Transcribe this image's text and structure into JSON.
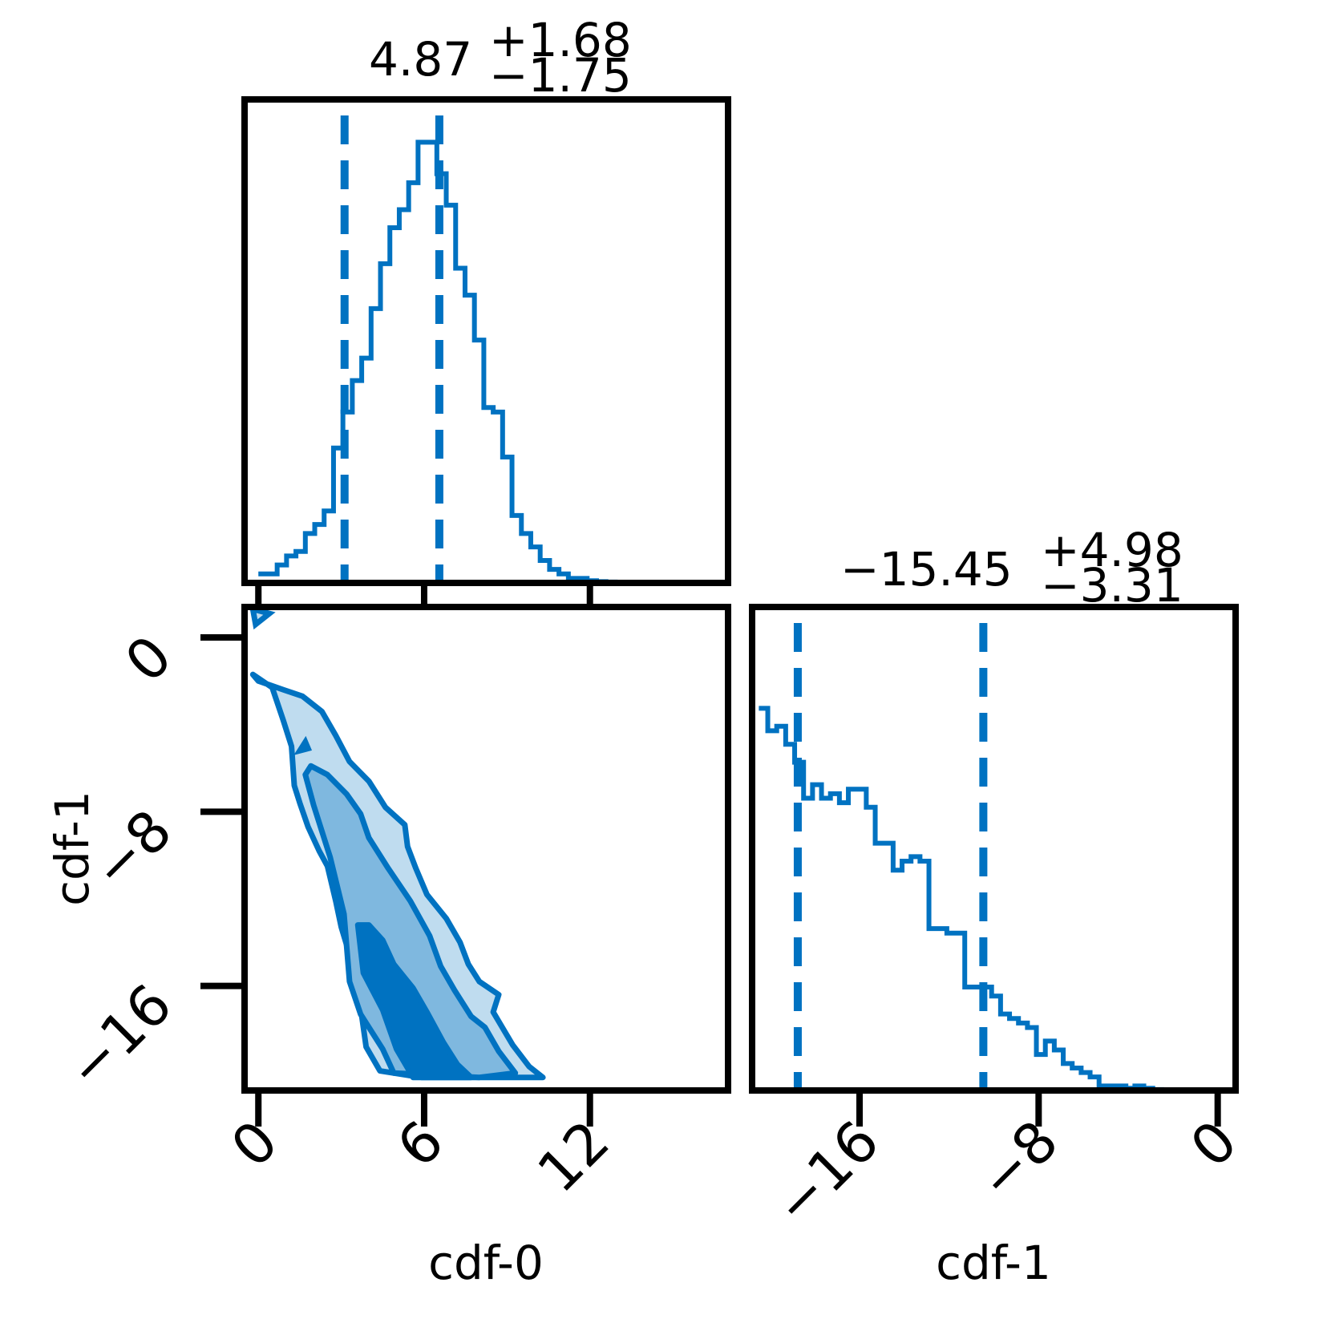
{
  "colors": {
    "accent": "#0072c1",
    "fill_inner": "#0072c1",
    "fill_mid": "#7fb8df",
    "fill_outer": "#bfdcef",
    "axes": "#000000",
    "background": "#ffffff"
  },
  "titles": {
    "cdf0": {
      "median": "4.87",
      "plus": "+1.68",
      "minus": "−1.75"
    },
    "cdf1": {
      "median": "−15.45",
      "plus": "+4.98",
      "minus": "−3.31"
    }
  },
  "labels": {
    "x0": "cdf-0",
    "x1": "cdf-1",
    "y1": "cdf-1"
  },
  "ticks": {
    "cdf0": [
      {
        "v": 0,
        "t": "0"
      },
      {
        "v": 6,
        "t": "6"
      },
      {
        "v": 12,
        "t": "12"
      }
    ],
    "cdf1": [
      {
        "v": -16,
        "t": "−16"
      },
      {
        "v": -8,
        "t": "−8"
      },
      {
        "v": 0,
        "t": "0"
      }
    ]
  },
  "chart_data": [
    {
      "type": "histogram",
      "name": "cdf-0",
      "xlim": [
        -0.5,
        17.0
      ],
      "ylim": [
        0,
        1.0
      ],
      "bin_start": 0.0,
      "bin_width": 0.34,
      "counts": [
        0.02,
        0.02,
        0.04,
        0.06,
        0.07,
        0.11,
        0.13,
        0.16,
        0.3,
        0.38,
        0.45,
        0.5,
        0.61,
        0.71,
        0.79,
        0.83,
        0.89,
        0.98,
        0.98,
        0.91,
        0.84,
        0.7,
        0.64,
        0.54,
        0.39,
        0.38,
        0.28,
        0.15,
        0.11,
        0.08,
        0.05,
        0.03,
        0.02,
        0.01,
        0.01,
        0.005,
        0.003,
        0.002,
        0.001,
        0.001
      ],
      "quantiles": [
        3.12,
        6.55
      ]
    },
    {
      "type": "histogram",
      "name": "cdf-1",
      "xlim": [
        -20.8,
        0.8
      ],
      "ylim": [
        0,
        1.0
      ],
      "bin_start": -20.5,
      "bin_width": 0.4,
      "counts": [
        0.85,
        0.8,
        0.81,
        0.77,
        0.73,
        0.65,
        0.68,
        0.65,
        0.66,
        0.64,
        0.67,
        0.67,
        0.63,
        0.55,
        0.55,
        0.49,
        0.51,
        0.52,
        0.51,
        0.36,
        0.36,
        0.35,
        0.35,
        0.23,
        0.23,
        0.23,
        0.21,
        0.17,
        0.16,
        0.15,
        0.14,
        0.08,
        0.11,
        0.09,
        0.06,
        0.05,
        0.04,
        0.03,
        0.01,
        0.01,
        0.01,
        0.005,
        0.01,
        0.005,
        0.002,
        0.001
      ],
      "quantiles": [
        -18.76,
        -10.47
      ]
    },
    {
      "type": "contour",
      "name": "cdf-0 vs cdf-1",
      "xlabel": "cdf-0",
      "ylabel": "cdf-1",
      "xlim": [
        -0.5,
        17.0
      ],
      "ylim": [
        -20.8,
        1.4
      ],
      "levels": [
        {
          "fill": "#bfdcef",
          "points": [
            [
              -0.2,
              -1.7
            ],
            [
              0.5,
              -2.3
            ],
            [
              0.9,
              -3.8
            ],
            [
              1.2,
              -5.0
            ],
            [
              1.3,
              -6.8
            ],
            [
              1.5,
              -7.6
            ],
            [
              1.8,
              -8.7
            ],
            [
              2.2,
              -9.8
            ],
            [
              2.5,
              -10.5
            ],
            [
              2.8,
              -12.1
            ],
            [
              3.0,
              -13.3
            ],
            [
              3.5,
              -15.4
            ],
            [
              3.7,
              -17.0
            ],
            [
              3.9,
              -18.8
            ],
            [
              4.4,
              -19.9
            ],
            [
              5.9,
              -20.2
            ],
            [
              10.3,
              -20.2
            ],
            [
              9.8,
              -19.7
            ],
            [
              9.2,
              -18.7
            ],
            [
              8.5,
              -17.2
            ],
            [
              8.7,
              -16.4
            ],
            [
              8.0,
              -15.8
            ],
            [
              7.6,
              -15.0
            ],
            [
              7.3,
              -14.0
            ],
            [
              6.8,
              -12.9
            ],
            [
              6.1,
              -11.8
            ],
            [
              5.7,
              -10.6
            ],
            [
              5.4,
              -9.6
            ],
            [
              5.3,
              -8.6
            ],
            [
              4.6,
              -7.8
            ],
            [
              4.0,
              -6.6
            ],
            [
              3.3,
              -5.7
            ],
            [
              2.8,
              -4.5
            ],
            [
              2.3,
              -3.4
            ],
            [
              1.6,
              -2.7
            ],
            [
              0.9,
              -2.4
            ],
            [
              0.0,
              -2.0
            ]
          ]
        },
        {
          "fill": "#7fb8df",
          "points": [
            [
              1.7,
              -6.3
            ],
            [
              2.0,
              -7.7
            ],
            [
              2.6,
              -10.1
            ],
            [
              3.1,
              -12.7
            ],
            [
              3.3,
              -15.8
            ],
            [
              3.7,
              -17.3
            ],
            [
              4.5,
              -18.9
            ],
            [
              4.9,
              -20.0
            ],
            [
              8.0,
              -20.2
            ],
            [
              9.3,
              -20.0
            ],
            [
              8.7,
              -19.0
            ],
            [
              8.2,
              -17.9
            ],
            [
              7.7,
              -17.4
            ],
            [
              7.1,
              -16.2
            ],
            [
              6.6,
              -15.1
            ],
            [
              6.2,
              -13.7
            ],
            [
              5.5,
              -12.1
            ],
            [
              4.7,
              -10.6
            ],
            [
              4.0,
              -9.2
            ],
            [
              3.7,
              -8.1
            ],
            [
              3.2,
              -7.2
            ],
            [
              2.5,
              -6.3
            ],
            [
              1.9,
              -5.9
            ]
          ]
        },
        {
          "fill": "#0072c1",
          "points": [
            [
              3.6,
              -13.2
            ],
            [
              3.8,
              -15.4
            ],
            [
              4.5,
              -17.1
            ],
            [
              5.0,
              -18.9
            ],
            [
              5.6,
              -20.2
            ],
            [
              7.7,
              -20.2
            ],
            [
              7.2,
              -19.6
            ],
            [
              6.7,
              -18.6
            ],
            [
              6.1,
              -17.2
            ],
            [
              5.6,
              -16.1
            ],
            [
              4.9,
              -15.0
            ],
            [
              4.5,
              -13.9
            ],
            [
              4.0,
              -13.2
            ]
          ]
        }
      ],
      "islands": [
        [
          [
            1.5,
            -5.2
          ],
          [
            1.8,
            -5.1
          ],
          [
            1.7,
            -4.8
          ]
        ],
        [
          [
            -0.2,
            1.3
          ],
          [
            -0.1,
            0.6
          ],
          [
            0.4,
            1.1
          ]
        ]
      ]
    }
  ]
}
